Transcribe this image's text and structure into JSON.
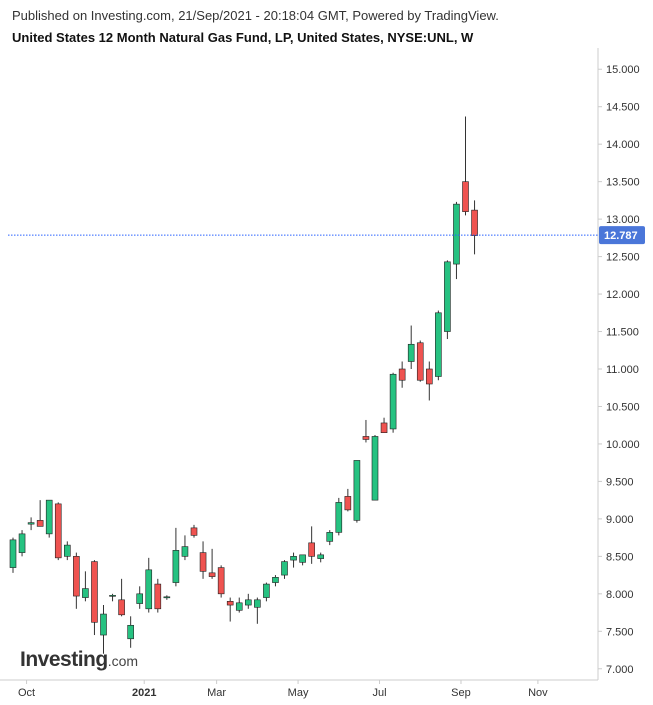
{
  "header": {
    "published": "Published on Investing.com, 21/Sep/2021 - 20:18:04 GMT, Powered by TradingView.",
    "title": "United States 12 Month Natural Gas Fund, LP, United States, NYSE:UNL, W"
  },
  "logo": {
    "main": "Investing",
    "suffix": ".com"
  },
  "colors": {
    "up": "#26c281",
    "down": "#ef5350",
    "wick": "#333333",
    "price_line": "#2962ff",
    "price_tag_bg": "#4a76d9",
    "axis": "#cccccc",
    "text": "#333333"
  },
  "chart_data": {
    "type": "candlestick",
    "interval": "W",
    "ylim": [
      6.85,
      15.15
    ],
    "y_ticks": [
      "15.000",
      "14.500",
      "14.000",
      "13.500",
      "13.000",
      "12.500",
      "12.000",
      "11.500",
      "11.000",
      "10.500",
      "10.000",
      "9.500",
      "9.000",
      "8.500",
      "8.000",
      "7.500",
      "7.000"
    ],
    "x_ticks": [
      {
        "label": "Oct",
        "week": 1.5
      },
      {
        "label": "2021",
        "week": 14.5
      },
      {
        "label": "Mar",
        "week": 22.5
      },
      {
        "label": "May",
        "week": 31.5
      },
      {
        "label": "Jul",
        "week": 40.5
      },
      {
        "label": "Sep",
        "week": 49.5
      },
      {
        "label": "Nov",
        "week": 58
      }
    ],
    "x_tick_bold": [
      "2021"
    ],
    "last_price": 12.787,
    "last_price_label": "12.787",
    "candles": [
      {
        "o": 8.35,
        "h": 8.75,
        "l": 8.28,
        "c": 8.72
      },
      {
        "o": 8.55,
        "h": 8.85,
        "l": 8.5,
        "c": 8.8
      },
      {
        "o": 8.93,
        "h": 9.02,
        "l": 8.85,
        "c": 8.95
      },
      {
        "o": 8.98,
        "h": 9.25,
        "l": 8.9,
        "c": 8.9
      },
      {
        "o": 8.8,
        "h": 9.25,
        "l": 8.75,
        "c": 9.25
      },
      {
        "o": 9.2,
        "h": 9.22,
        "l": 8.45,
        "c": 8.48
      },
      {
        "o": 8.5,
        "h": 8.7,
        "l": 8.45,
        "c": 8.65
      },
      {
        "o": 8.5,
        "h": 8.55,
        "l": 7.8,
        "c": 7.97
      },
      {
        "o": 7.95,
        "h": 8.3,
        "l": 7.9,
        "c": 8.07
      },
      {
        "o": 8.43,
        "h": 8.45,
        "l": 7.45,
        "c": 7.62
      },
      {
        "o": 7.45,
        "h": 7.85,
        "l": 7.2,
        "c": 7.73
      },
      {
        "o": 7.97,
        "h": 8.0,
        "l": 7.9,
        "c": 7.98
      },
      {
        "o": 7.92,
        "h": 8.2,
        "l": 7.7,
        "c": 7.72
      },
      {
        "o": 7.4,
        "h": 7.7,
        "l": 7.28,
        "c": 7.58
      },
      {
        "o": 7.87,
        "h": 8.1,
        "l": 7.8,
        "c": 8.0
      },
      {
        "o": 7.8,
        "h": 8.48,
        "l": 7.75,
        "c": 8.32
      },
      {
        "o": 8.13,
        "h": 8.2,
        "l": 7.75,
        "c": 7.8
      },
      {
        "o": 7.95,
        "h": 7.98,
        "l": 7.92,
        "c": 7.96
      },
      {
        "o": 8.15,
        "h": 8.88,
        "l": 8.1,
        "c": 8.58
      },
      {
        "o": 8.5,
        "h": 8.78,
        "l": 8.45,
        "c": 8.63
      },
      {
        "o": 8.88,
        "h": 8.92,
        "l": 8.75,
        "c": 8.78
      },
      {
        "o": 8.55,
        "h": 8.7,
        "l": 8.2,
        "c": 8.3
      },
      {
        "o": 8.28,
        "h": 8.6,
        "l": 8.2,
        "c": 8.23
      },
      {
        "o": 8.35,
        "h": 8.38,
        "l": 7.95,
        "c": 8.0
      },
      {
        "o": 7.9,
        "h": 7.95,
        "l": 7.63,
        "c": 7.85
      },
      {
        "o": 7.78,
        "h": 7.95,
        "l": 7.75,
        "c": 7.88
      },
      {
        "o": 7.85,
        "h": 8.0,
        "l": 7.8,
        "c": 7.92
      },
      {
        "o": 7.82,
        "h": 7.95,
        "l": 7.6,
        "c": 7.92
      },
      {
        "o": 7.95,
        "h": 8.15,
        "l": 7.9,
        "c": 8.13
      },
      {
        "o": 8.15,
        "h": 8.25,
        "l": 8.1,
        "c": 8.22
      },
      {
        "o": 8.25,
        "h": 8.45,
        "l": 8.2,
        "c": 8.43
      },
      {
        "o": 8.45,
        "h": 8.55,
        "l": 8.35,
        "c": 8.5
      },
      {
        "o": 8.42,
        "h": 8.5,
        "l": 8.38,
        "c": 8.52
      },
      {
        "o": 8.68,
        "h": 8.9,
        "l": 8.4,
        "c": 8.5
      },
      {
        "o": 8.47,
        "h": 8.55,
        "l": 8.42,
        "c": 8.52
      },
      {
        "o": 8.7,
        "h": 8.85,
        "l": 8.65,
        "c": 8.82
      },
      {
        "o": 8.82,
        "h": 9.28,
        "l": 8.78,
        "c": 9.22
      },
      {
        "o": 9.3,
        "h": 9.4,
        "l": 9.1,
        "c": 9.12
      },
      {
        "o": 8.98,
        "h": 9.78,
        "l": 8.95,
        "c": 9.78
      },
      {
        "o": 10.1,
        "h": 10.32,
        "l": 10.02,
        "c": 10.06
      },
      {
        "o": 9.25,
        "h": 10.12,
        "l": 9.25,
        "c": 10.1
      },
      {
        "o": 10.28,
        "h": 10.35,
        "l": 10.18,
        "c": 10.15
      },
      {
        "o": 10.2,
        "h": 10.95,
        "l": 10.15,
        "c": 10.93
      },
      {
        "o": 11.0,
        "h": 11.1,
        "l": 10.75,
        "c": 10.85
      },
      {
        "o": 11.1,
        "h": 11.58,
        "l": 11.0,
        "c": 11.33
      },
      {
        "o": 11.35,
        "h": 11.38,
        "l": 10.83,
        "c": 10.85
      },
      {
        "o": 11.0,
        "h": 11.1,
        "l": 10.58,
        "c": 10.8
      },
      {
        "o": 10.9,
        "h": 11.78,
        "l": 10.85,
        "c": 11.75
      },
      {
        "o": 11.5,
        "h": 12.45,
        "l": 11.4,
        "c": 12.43
      },
      {
        "o": 12.4,
        "h": 13.23,
        "l": 12.2,
        "c": 13.2
      },
      {
        "o": 13.5,
        "h": 14.37,
        "l": 13.05,
        "c": 13.1
      },
      {
        "o": 13.12,
        "h": 13.25,
        "l": 12.53,
        "c": 12.78
      }
    ]
  }
}
